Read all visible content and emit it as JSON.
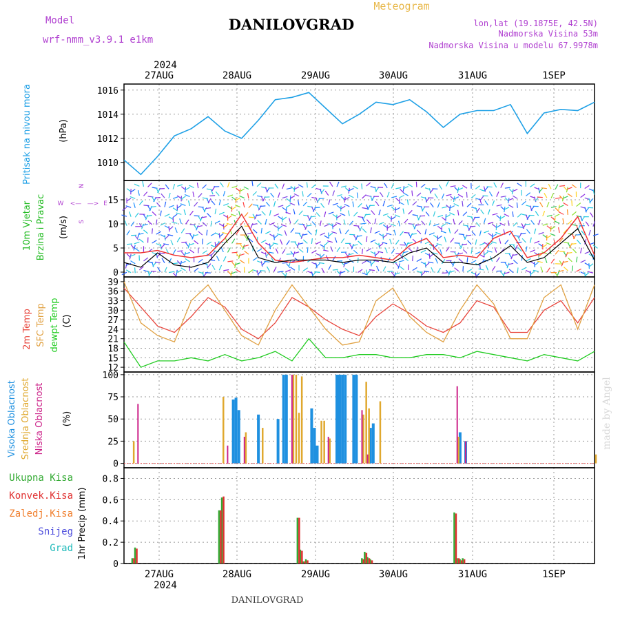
{
  "header": {
    "model_label": "Model",
    "model_name": "wrf-nmm_v3.9.1  e1km",
    "title": "DANILOVGRAD",
    "subtitle": "Meteogram",
    "coords": "lon,lat (19.1875E, 42.5N)",
    "altitude": "Nadmorska Visina 53m",
    "model_altitude": "Nadmorska Visina u modelu 67.9978m",
    "footer_title": "DANILOVGRAD",
    "watermark": "made by Angel"
  },
  "colors": {
    "pressure": "#1ea0e6",
    "wind_label": "#22bb22",
    "wind_speed": "#ee3333",
    "wind_gust": "#000000",
    "temp2m": "#e8453c",
    "sfc": "#e0a040",
    "dew": "#22cc22",
    "cloud_high": "#1e90e0",
    "cloud_mid": "#e0a82e",
    "cloud_low": "#cc2288",
    "precip_total": "#33aa33",
    "precip_conv": "#e03030",
    "precip_frozen": "#f08030",
    "precip_snow": "#5050dd",
    "precip_hail": "#22bbbb",
    "legend_purple": "#b040d0"
  },
  "chart_data": [
    {
      "type": "line",
      "panel": "pressure",
      "ylabel": "Pritisak na nivou mora",
      "unit": "(hPa)",
      "ylim": [
        1008.5,
        1016.5
      ],
      "yticks": [
        1010,
        1012,
        1014,
        1016
      ],
      "x_days": [
        "27AUG",
        "28AUG",
        "29AUG",
        "30AUG",
        "31AUG",
        "1SEP"
      ],
      "year": "2024",
      "x_hours": [
        0,
        6,
        12,
        18,
        24,
        30,
        36,
        42,
        48,
        54,
        60,
        66,
        72,
        78,
        84,
        90,
        96,
        102,
        108,
        114,
        120,
        126,
        132,
        138,
        144,
        150,
        156,
        162,
        168
      ],
      "values": [
        1010.2,
        1009.0,
        1010.5,
        1012.2,
        1012.8,
        1013.8,
        1012.6,
        1012.0,
        1013.5,
        1015.2,
        1015.4,
        1015.8,
        1014.5,
        1013.2,
        1014.0,
        1015.0,
        1014.8,
        1015.2,
        1014.2,
        1012.9,
        1014.0,
        1014.3,
        1014.3,
        1014.8,
        1012.4,
        1014.1,
        1014.4,
        1014.3,
        1015.0
      ]
    },
    {
      "type": "line",
      "panel": "wind",
      "ylabel": "10m Vjetar",
      "ylabel2": "Brzina i Pravac",
      "unit": "(m/s)",
      "compass": [
        "N",
        "W",
        "E",
        "S",
        "<—",
        "—>"
      ],
      "ylim": [
        -1,
        19
      ],
      "yticks": [
        0,
        5,
        10,
        15
      ],
      "series": [
        {
          "name": "speed",
          "values": [
            4.0,
            4.0,
            4.5,
            3.5,
            3.0,
            3.5,
            7.0,
            12.0,
            6.0,
            2.5,
            2.0,
            2.5,
            3.0,
            3.0,
            3.5,
            3.0,
            2.5,
            5.5,
            7.0,
            3.0,
            3.5,
            3.0,
            7.0,
            8.5,
            3.0,
            4.0,
            7.0,
            11.5,
            3.5
          ]
        },
        {
          "name": "gust",
          "values": [
            2.0,
            1.0,
            4.0,
            1.5,
            1.0,
            2.0,
            6.0,
            9.5,
            3.0,
            2.0,
            2.5,
            2.5,
            2.5,
            2.0,
            2.5,
            2.5,
            2.0,
            4.0,
            5.0,
            2.0,
            2.0,
            1.5,
            3.0,
            5.5,
            2.0,
            3.0,
            6.0,
            9.0,
            2.5
          ]
        }
      ]
    },
    {
      "type": "line",
      "panel": "temperature",
      "ylabel": "2m Temp",
      "ylabel2": "SFC Temp",
      "ylabel3": "dewpt Temp",
      "unit": "(C)",
      "ylim": [
        10.5,
        40.5
      ],
      "yticks": [
        12,
        15,
        18,
        21,
        24,
        27,
        30,
        33,
        36,
        39
      ],
      "series": [
        {
          "name": "2m Temp",
          "values": [
            37,
            31,
            25,
            23,
            28,
            34,
            31,
            24,
            21,
            26,
            34,
            31,
            27,
            24,
            22,
            28,
            32,
            29,
            25,
            23,
            26,
            33,
            31,
            23,
            23,
            30,
            33,
            26,
            34
          ]
        },
        {
          "name": "SFC Temp",
          "values": [
            39,
            26,
            22,
            20,
            33,
            38,
            30,
            22,
            19,
            30,
            38,
            31,
            24,
            19,
            20,
            33,
            37,
            28,
            23,
            20,
            30,
            38,
            32,
            21,
            21,
            34,
            38,
            24,
            38
          ]
        },
        {
          "name": "dewpt Temp",
          "values": [
            20,
            12,
            14,
            14,
            15,
            14,
            16,
            14,
            15,
            17,
            14,
            21,
            15,
            15,
            16,
            16,
            15,
            15,
            16,
            16,
            15,
            17,
            16,
            15,
            14,
            16,
            15,
            14,
            17
          ]
        }
      ]
    },
    {
      "type": "bar",
      "panel": "clouds",
      "ylabel": "Visoka Oblacnost",
      "ylabel2": "Srednja Oblacnost",
      "ylabel3": "Niska Oblacnost",
      "unit": "(%)",
      "ylim": [
        -5,
        103
      ],
      "yticks": [
        0,
        25,
        50,
        75,
        100
      ],
      "series": [
        {
          "name": "Visoka Oblacnost",
          "points": [
            [
              39,
              72
            ],
            [
              40,
              74
            ],
            [
              41,
              60
            ],
            [
              48,
              55
            ],
            [
              55,
              50
            ],
            [
              57,
              100
            ],
            [
              58,
              100
            ],
            [
              67,
              62
            ],
            [
              68,
              40
            ],
            [
              69,
              20
            ],
            [
              76,
              100
            ],
            [
              77,
              100
            ],
            [
              78,
              100
            ],
            [
              79,
              100
            ],
            [
              82,
              100
            ],
            [
              83,
              100
            ],
            [
              88,
              40
            ],
            [
              89,
              45
            ],
            [
              120,
              35
            ],
            [
              122,
              25
            ]
          ]
        },
        {
          "name": "Srednja Oblacnost",
          "points": [
            [
              3,
              25
            ],
            [
              35,
              75
            ],
            [
              43,
              35
            ],
            [
              49,
              40
            ],
            [
              60,
              100
            ],
            [
              61,
              100
            ],
            [
              62,
              57
            ],
            [
              63,
              98
            ],
            [
              70,
              48
            ],
            [
              71,
              48
            ],
            [
              73,
              28
            ],
            [
              85,
              55
            ],
            [
              86,
              92
            ],
            [
              87,
              62
            ],
            [
              91,
              70
            ],
            [
              119,
              30
            ],
            [
              168,
              10
            ]
          ]
        },
        {
          "name": "Niska Oblacnost",
          "points": [
            [
              4,
              67
            ],
            [
              36,
              20
            ],
            [
              42,
              30
            ],
            [
              59,
              100
            ],
            [
              72,
              30
            ],
            [
              84,
              60
            ],
            [
              86,
              10
            ],
            [
              118,
              87
            ],
            [
              121,
              25
            ]
          ]
        }
      ]
    },
    {
      "type": "bar",
      "panel": "precip",
      "ylabel": "1hr Precip",
      "unit": "(mm)",
      "legend": [
        "Ukupna Kisa",
        "Konvek.Kisa",
        "Zaledj.Kisa",
        "Snijeg",
        "Grad"
      ],
      "ylim": [
        0,
        0.9
      ],
      "yticks": [
        0,
        0.2,
        0.4,
        0.6,
        0.8
      ],
      "series": [
        {
          "name": "Ukupna Kisa",
          "points": [
            [
              3,
              0.05
            ],
            [
              4,
              0.15
            ],
            [
              34,
              0.5
            ],
            [
              35,
              0.62
            ],
            [
              62,
              0.43
            ],
            [
              63,
              0.13
            ],
            [
              64,
              0.02
            ],
            [
              65,
              0.04
            ],
            [
              85,
              0.05
            ],
            [
              86,
              0.11
            ],
            [
              87,
              0.06
            ],
            [
              88,
              0.04
            ],
            [
              118,
              0.48
            ],
            [
              119,
              0.05
            ],
            [
              120,
              0.04
            ],
            [
              121,
              0.05
            ]
          ]
        },
        {
          "name": "Konvek.Kisa",
          "points": [
            [
              3,
              0.05
            ],
            [
              4,
              0.14
            ],
            [
              34,
              0.5
            ],
            [
              35,
              0.63
            ],
            [
              62,
              0.43
            ],
            [
              63,
              0.12
            ],
            [
              64,
              0.02
            ],
            [
              65,
              0.03
            ],
            [
              85,
              0.04
            ],
            [
              86,
              0.1
            ],
            [
              87,
              0.05
            ],
            [
              88,
              0.03
            ],
            [
              118,
              0.47
            ],
            [
              119,
              0.05
            ],
            [
              120,
              0.03
            ],
            [
              121,
              0.04
            ]
          ]
        }
      ]
    }
  ]
}
